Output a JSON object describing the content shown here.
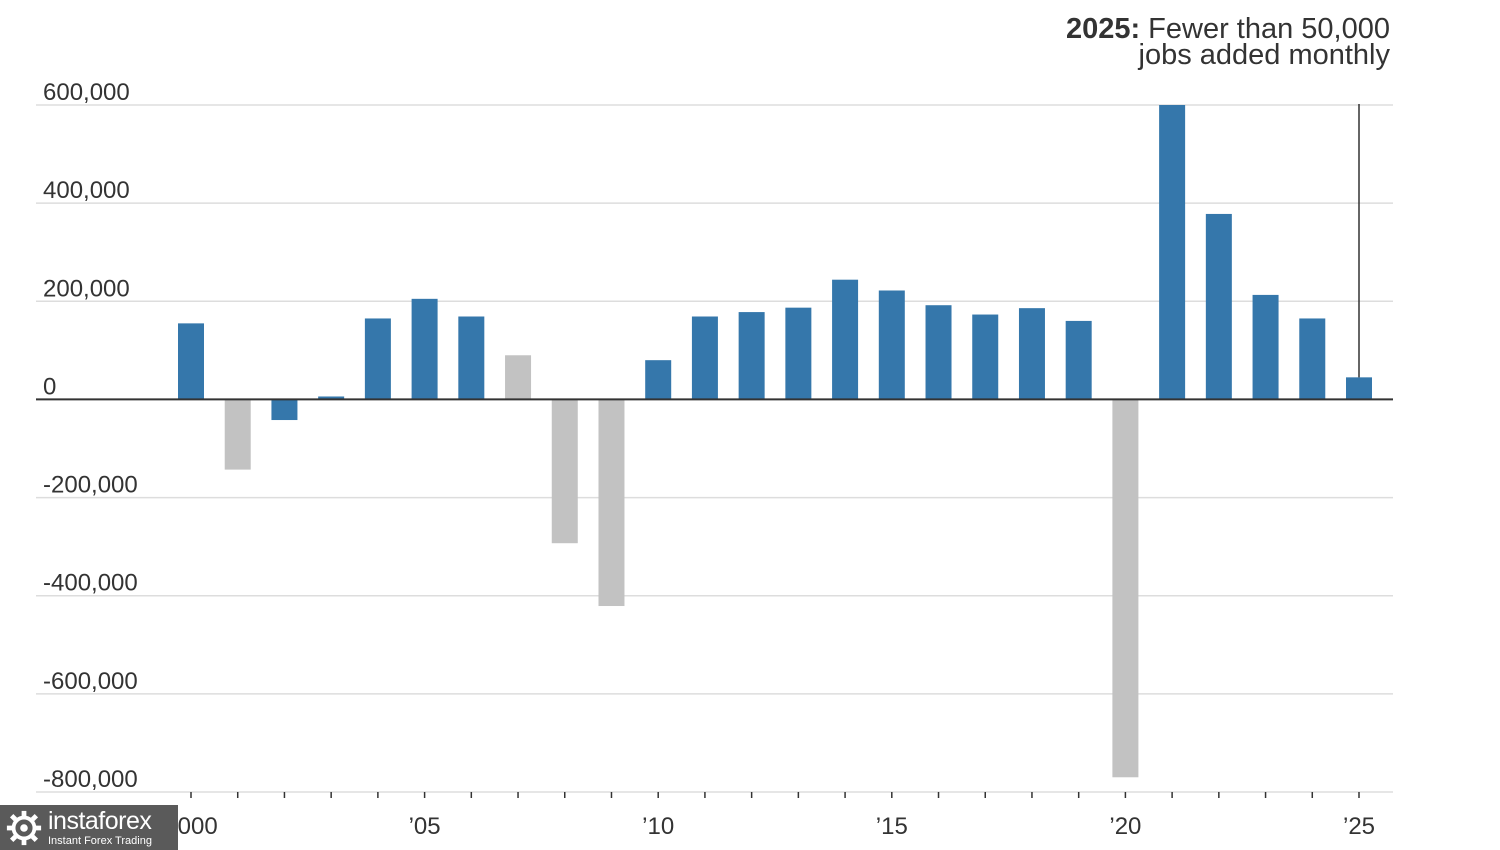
{
  "annotation": {
    "year": "2025:",
    "line1": "Fewer than 50,000",
    "line2": "jobs added monthly"
  },
  "watermark": {
    "brand": "instaforex",
    "tagline": "Instant Forex Trading",
    "icon": "gear-logo-icon"
  },
  "colors": {
    "positive": "#3577ab",
    "negative": "#c2c2c2",
    "grid": "#dddddd",
    "axis": "#333333"
  },
  "chart_data": {
    "type": "bar",
    "title": "",
    "xlabel": "",
    "ylabel": "",
    "categories": [
      2000,
      2001,
      2002,
      2003,
      2004,
      2005,
      2006,
      2007,
      2008,
      2009,
      2010,
      2011,
      2012,
      2013,
      2014,
      2015,
      2016,
      2017,
      2018,
      2019,
      2020,
      2021,
      2022,
      2023,
      2024,
      2025
    ],
    "values": [
      155000,
      -143000,
      -42000,
      6000,
      165000,
      205000,
      169000,
      90000,
      -293000,
      -421000,
      80000,
      169000,
      178000,
      187000,
      244000,
      222000,
      192000,
      173000,
      186000,
      160000,
      -770000,
      600000,
      378000,
      213000,
      165000,
      45000
    ],
    "bar_colors": [
      "positive",
      "negative",
      "positive",
      "positive",
      "positive",
      "positive",
      "positive",
      "negative",
      "negative",
      "negative",
      "positive",
      "positive",
      "positive",
      "positive",
      "positive",
      "positive",
      "positive",
      "positive",
      "positive",
      "positive",
      "negative",
      "positive",
      "positive",
      "positive",
      "positive",
      "positive"
    ],
    "ylim": [
      -800000,
      600000
    ],
    "yticks": [
      600000,
      400000,
      200000,
      0,
      -200000,
      -400000,
      -600000,
      -800000
    ],
    "ytick_labels": [
      "600,000",
      "400,000",
      "200,000",
      "0",
      "-200,000",
      "-400,000",
      "-600,000",
      "-800,000"
    ],
    "xticks": [
      2000,
      2005,
      2010,
      2015,
      2020,
      2025
    ],
    "xtick_labels": [
      "2000",
      "’05",
      "’10",
      "’15",
      "’20",
      "’25"
    ],
    "grid": true,
    "legend": "none"
  }
}
